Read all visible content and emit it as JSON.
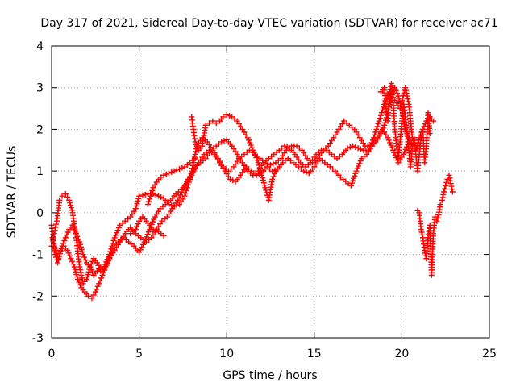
{
  "chart_data": {
    "type": "scatter",
    "title": "Day 317 of 2021, Sidereal Day-to-day VTEC variation (SDTVAR) for receiver ac71",
    "xlabel": "GPS time / hours",
    "ylabel": "SDTVAR / TECUs",
    "xlim": [
      0,
      25
    ],
    "ylim": [
      -3,
      4
    ],
    "xticks": [
      "0",
      "5",
      "10",
      "15",
      "20",
      "25"
    ],
    "yticks": [
      "-3",
      "-2",
      "-1",
      "0",
      "1",
      "2",
      "3",
      "4"
    ],
    "grid": true,
    "marker": "plus",
    "color": "#ff0000",
    "series": [
      {
        "x": [
          0.0,
          0.15,
          0.3,
          0.45,
          0.6,
          0.8,
          1.0,
          1.2,
          1.4,
          1.6,
          1.8,
          2.0,
          2.2,
          2.4,
          2.6,
          2.8,
          3.0,
          3.3,
          3.6,
          3.9,
          4.2,
          4.5,
          4.8,
          5.0,
          5.2,
          5.5,
          5.8,
          6.1,
          6.4,
          6.7,
          7.0,
          7.3,
          7.6,
          7.9,
          8.1,
          8.3,
          8.6,
          8.9,
          9.2,
          9.5,
          9.8,
          10.1,
          10.4,
          10.7,
          11.0,
          11.3,
          11.6,
          11.9,
          12.2,
          12.5,
          12.8,
          13.1,
          13.4,
          13.7,
          14.0,
          14.3,
          14.6,
          14.9,
          15.2,
          15.5,
          15.8,
          16.1,
          16.4,
          16.7,
          17.0,
          17.3,
          17.6,
          17.9,
          18.2,
          18.5,
          18.8,
          19.0,
          19.2,
          19.4,
          19.6,
          19.8,
          20.0,
          20.2,
          20.4,
          20.6
        ],
        "y": [
          -0.8,
          -0.5,
          -0.2,
          0.3,
          0.4,
          0.45,
          0.3,
          0.0,
          -0.6,
          -1.3,
          -1.7,
          -1.6,
          -1.3,
          -1.1,
          -1.2,
          -1.4,
          -1.3,
          -1.0,
          -0.6,
          -0.3,
          -0.2,
          -0.1,
          0.1,
          0.4,
          0.42,
          0.45,
          0.45,
          0.4,
          0.35,
          0.2,
          0.15,
          0.2,
          0.4,
          0.8,
          1.2,
          1.6,
          1.8,
          1.7,
          1.5,
          1.3,
          1.1,
          1.0,
          1.1,
          1.3,
          1.4,
          1.5,
          1.4,
          1.3,
          1.2,
          1.15,
          1.2,
          1.3,
          1.5,
          1.6,
          1.6,
          1.5,
          1.3,
          1.2,
          1.3,
          1.5,
          1.6,
          1.8,
          2.0,
          2.2,
          2.1,
          2.0,
          1.8,
          1.6,
          1.6,
          1.7,
          1.9,
          2.1,
          2.4,
          2.8,
          3.0,
          2.8,
          2.5,
          2.0,
          1.8,
          1.6
        ]
      },
      {
        "x": [
          0.0,
          0.1,
          0.2,
          0.35,
          0.5,
          0.7,
          0.9,
          1.1,
          1.3,
          1.5,
          1.7,
          1.9,
          2.1,
          2.3,
          2.5,
          2.7,
          2.9,
          3.2,
          3.5,
          3.8,
          4.1,
          4.4,
          4.7,
          5.0,
          5.3,
          5.6,
          5.9,
          6.2,
          6.5,
          6.8,
          7.1,
          7.4,
          7.7,
          8.0,
          8.2,
          8.5,
          8.8,
          9.1,
          9.4,
          9.7,
          10.0,
          10.3,
          10.6,
          10.9,
          11.2,
          11.5,
          11.8,
          12.1,
          12.4,
          12.7,
          13.0,
          13.3,
          13.6,
          13.9,
          14.2,
          14.5,
          14.8,
          15.1,
          15.4,
          15.7,
          16.0,
          16.3,
          16.6,
          16.9,
          17.2,
          17.5,
          17.8,
          18.1,
          18.4,
          18.7,
          19.0,
          19.3,
          19.6,
          19.9,
          20.2,
          20.4,
          20.6,
          20.8,
          21.0,
          21.2,
          21.4,
          21.6,
          21.8
        ],
        "y": [
          -0.3,
          -0.6,
          -1.0,
          -1.2,
          -0.9,
          -0.8,
          -0.9,
          -1.1,
          -1.3,
          -1.6,
          -1.8,
          -1.9,
          -2.0,
          -2.05,
          -1.9,
          -1.7,
          -1.5,
          -1.2,
          -0.9,
          -0.7,
          -0.6,
          -0.7,
          -0.8,
          -0.95,
          -0.7,
          -0.4,
          -0.1,
          0.1,
          0.2,
          0.3,
          0.45,
          0.55,
          0.7,
          0.9,
          1.1,
          1.2,
          1.3,
          1.5,
          1.6,
          1.7,
          1.75,
          1.6,
          1.4,
          1.2,
          1.0,
          0.9,
          1.0,
          1.2,
          1.3,
          1.4,
          1.5,
          1.6,
          1.55,
          1.4,
          1.2,
          1.1,
          1.2,
          1.4,
          1.5,
          1.5,
          1.4,
          1.3,
          1.4,
          1.55,
          1.6,
          1.55,
          1.5,
          1.5,
          1.8,
          2.2,
          2.6,
          2.9,
          2.7,
          2.5,
          3.0,
          2.6,
          1.8,
          1.5,
          1.8,
          2.0,
          2.2,
          2.3,
          2.2
        ]
      },
      {
        "x": [
          0.05,
          0.2,
          0.4,
          0.6,
          0.8,
          1.0,
          1.2,
          1.4,
          1.6,
          1.8,
          2.0,
          2.2,
          2.4,
          2.6,
          2.8,
          3.0,
          3.3,
          3.6,
          3.9,
          4.2,
          4.5,
          4.8,
          5.1,
          5.4,
          5.7,
          6.0,
          6.3,
          6.6,
          6.9,
          7.2,
          7.5,
          7.8,
          8.1,
          8.4,
          8.7,
          9.0,
          9.3,
          9.6,
          9.9,
          10.2,
          10.5,
          10.8,
          11.1,
          11.4,
          11.7,
          12.0,
          12.3,
          12.6,
          12.9,
          13.2,
          13.5,
          13.8,
          14.1,
          14.4,
          14.7,
          15.0,
          15.3,
          15.6,
          15.9,
          16.2,
          16.5,
          16.8,
          17.1,
          17.4,
          17.7,
          18.0,
          18.3,
          18.6,
          18.9,
          19.2,
          19.5,
          19.8,
          20.1,
          20.4
        ],
        "y": [
          -0.6,
          -0.9,
          -1.1,
          -0.8,
          -0.6,
          -0.4,
          -0.3,
          -0.5,
          -0.7,
          -1.0,
          -1.2,
          -1.3,
          -1.5,
          -1.4,
          -1.3,
          -1.35,
          -1.1,
          -0.9,
          -0.7,
          -0.5,
          -0.35,
          -0.5,
          -0.6,
          -0.7,
          -0.6,
          -0.4,
          -0.2,
          -0.1,
          0.1,
          0.3,
          0.55,
          0.8,
          1.0,
          1.2,
          1.4,
          1.5,
          1.4,
          1.2,
          1.0,
          0.8,
          0.75,
          0.9,
          1.1,
          1.0,
          0.9,
          0.95,
          1.1,
          1.0,
          1.05,
          1.2,
          1.3,
          1.2,
          1.1,
          1.0,
          0.95,
          1.1,
          1.3,
          1.2,
          1.1,
          1.0,
          0.85,
          0.75,
          0.65,
          1.0,
          1.3,
          1.4,
          1.6,
          1.8,
          2.0,
          1.8,
          1.5,
          1.2,
          1.4,
          1.7
        ]
      },
      {
        "x": [
          8.0,
          8.1,
          8.2,
          8.4,
          8.6,
          8.8,
          9.0,
          9.2,
          9.4,
          9.6,
          9.8,
          10.0,
          10.3,
          10.6,
          10.9,
          11.2,
          11.5,
          11.8,
          12.0,
          12.2,
          12.4,
          12.6,
          12.8,
          13.0
        ],
        "y": [
          2.3,
          2.0,
          1.7,
          1.5,
          1.6,
          2.1,
          2.15,
          2.2,
          2.15,
          2.2,
          2.3,
          2.35,
          2.3,
          2.2,
          2.0,
          1.8,
          1.5,
          1.2,
          0.9,
          0.6,
          0.3,
          0.8,
          1.0,
          1.1
        ]
      },
      {
        "x": [
          5.5,
          5.8,
          6.1,
          6.4,
          6.7,
          7.0,
          7.3,
          7.6,
          7.9,
          8.2
        ],
        "y": [
          0.2,
          0.6,
          0.8,
          0.9,
          0.95,
          1.0,
          1.05,
          1.1,
          1.2,
          1.3
        ]
      },
      {
        "x": [
          4.5,
          4.8,
          5.0,
          5.2,
          5.5,
          5.8,
          6.1,
          6.4
        ],
        "y": [
          -0.5,
          -0.4,
          -0.2,
          -0.1,
          -0.25,
          -0.4,
          -0.45,
          -0.55
        ]
      },
      {
        "x": [
          20.9,
          21.0,
          21.1,
          21.2,
          21.3,
          21.4,
          21.5,
          21.6,
          21.7,
          21.8,
          21.9,
          22.0,
          22.1,
          22.2,
          22.3,
          22.4,
          22.5,
          22.6,
          22.7,
          22.8,
          22.9
        ],
        "y": [
          0.05,
          0.0,
          -0.4,
          -0.6,
          -0.9,
          -1.1,
          -0.6,
          -0.3,
          -1.5,
          -0.5,
          -0.1,
          -0.2,
          -0.05,
          0.2,
          0.3,
          0.5,
          0.65,
          0.8,
          0.9,
          0.7,
          0.5
        ]
      },
      {
        "x": [
          18.8,
          19.0,
          19.1,
          19.2,
          19.3,
          19.4,
          19.5,
          19.6,
          19.7,
          19.8,
          19.9,
          20.0,
          20.1,
          20.2,
          20.3,
          20.4,
          20.5,
          20.6,
          20.7,
          20.8,
          20.9,
          21.0,
          21.1,
          21.2,
          21.3,
          21.4,
          21.5,
          21.6
        ],
        "y": [
          2.9,
          3.0,
          2.5,
          2.2,
          2.8,
          3.1,
          2.7,
          2.0,
          1.6,
          1.3,
          1.7,
          2.2,
          2.6,
          2.3,
          1.9,
          1.5,
          1.1,
          1.6,
          1.8,
          1.4,
          1.0,
          1.4,
          1.8,
          2.0,
          1.2,
          1.6,
          2.4,
          1.9
        ]
      }
    ]
  }
}
